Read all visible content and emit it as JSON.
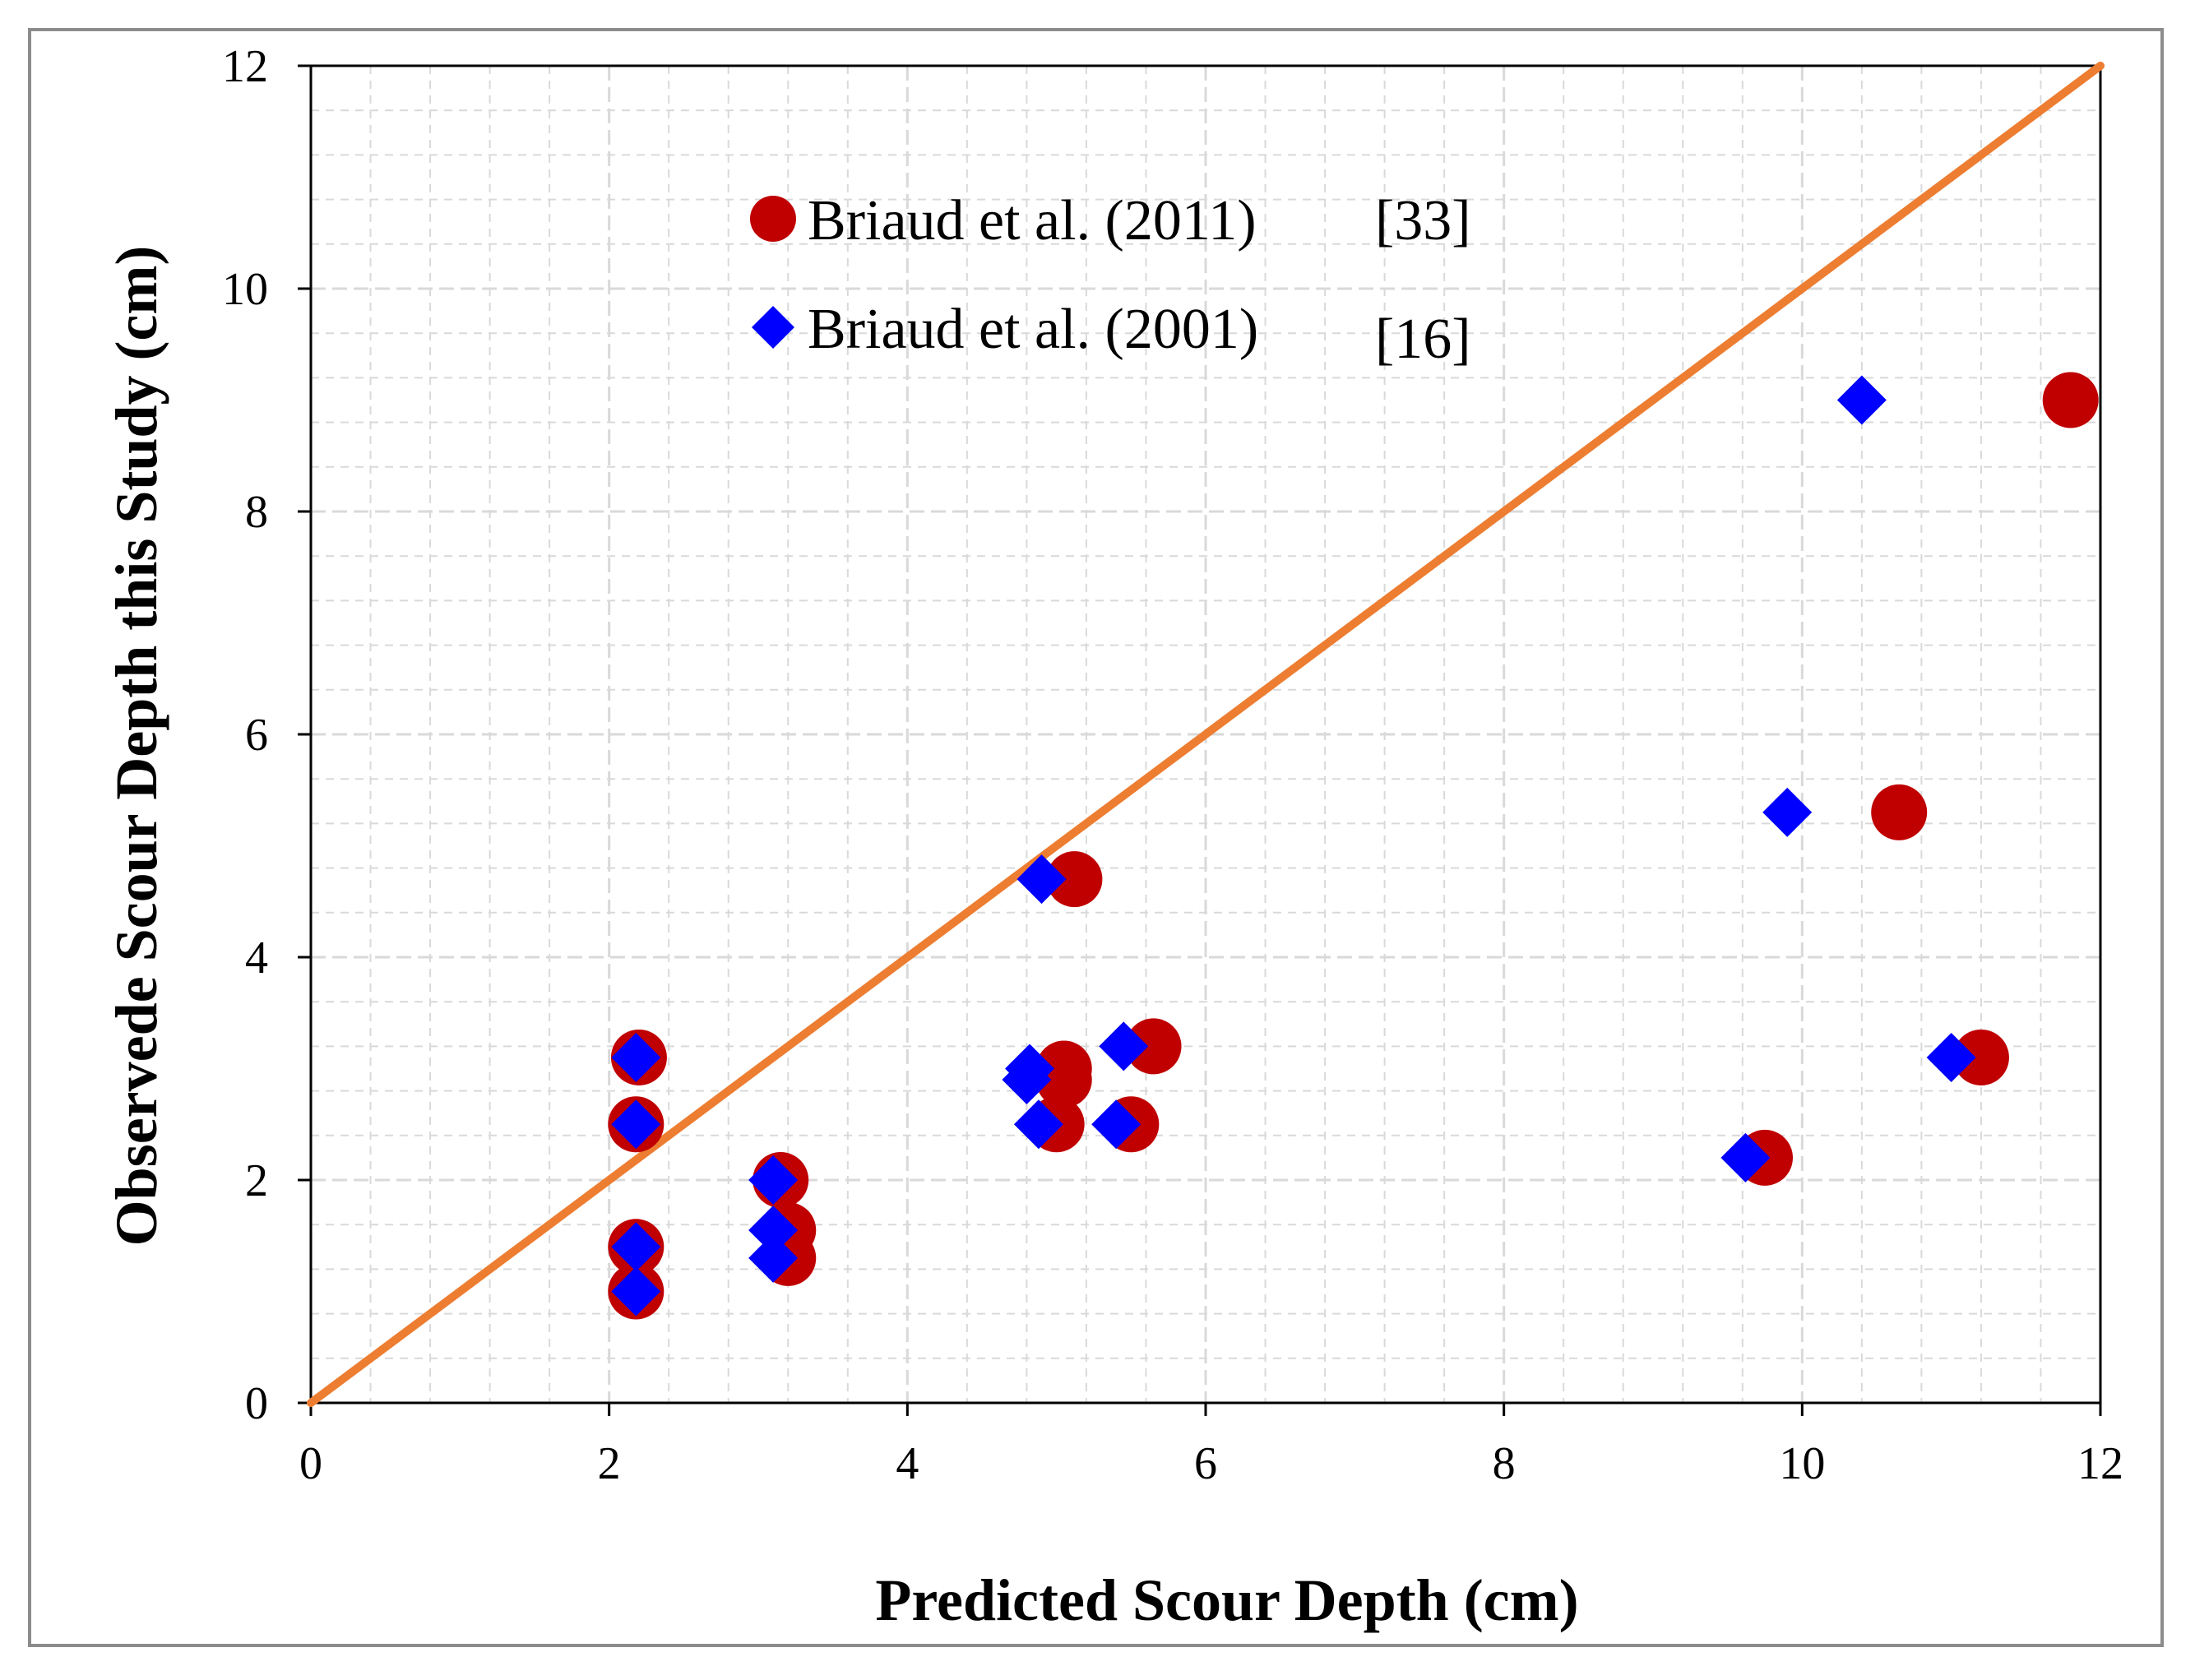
{
  "chart_data": {
    "type": "scatter",
    "title": "",
    "xlabel": "Predicted Scour Depth (cm)",
    "ylabel": "Observede Scour Depth this Study (cm)",
    "xlim": [
      0,
      12
    ],
    "ylim": [
      0,
      12
    ],
    "xticks": [
      "0",
      "2",
      "4",
      "6",
      "8",
      "10",
      "12"
    ],
    "yticks": [
      "0",
      "2",
      "4",
      "6",
      "8",
      "10",
      "12"
    ],
    "grid": true,
    "legend_position": "top-left",
    "reference_line": {
      "name": "1:1 line",
      "x": [
        0,
        12
      ],
      "y": [
        0,
        12
      ],
      "color": "#ED7D31"
    },
    "series": [
      {
        "name": "Briaud et al. (2011)",
        "ref": "[33]",
        "marker": "circle",
        "color": "#C00000",
        "points": [
          [
            2.18,
            1.0
          ],
          [
            2.18,
            1.4
          ],
          [
            2.18,
            2.5
          ],
          [
            2.2,
            3.1
          ],
          [
            3.2,
            1.3
          ],
          [
            3.2,
            1.55
          ],
          [
            3.15,
            2.0
          ],
          [
            5.0,
            2.5
          ],
          [
            5.05,
            2.9
          ],
          [
            5.05,
            3.0
          ],
          [
            5.12,
            4.7
          ],
          [
            5.5,
            2.5
          ],
          [
            5.65,
            3.2
          ],
          [
            9.75,
            2.2
          ],
          [
            10.65,
            5.3
          ],
          [
            11.2,
            3.1
          ],
          [
            11.8,
            9.0
          ]
        ]
      },
      {
        "name": "Briaud et al. (2001)",
        "ref": "[16]",
        "marker": "diamond",
        "color": "#0000FF",
        "points": [
          [
            2.18,
            1.0
          ],
          [
            2.18,
            1.4
          ],
          [
            2.18,
            2.5
          ],
          [
            2.18,
            3.1
          ],
          [
            3.1,
            1.3
          ],
          [
            3.1,
            1.55
          ],
          [
            3.1,
            2.0
          ],
          [
            4.8,
            2.9
          ],
          [
            4.82,
            3.0
          ],
          [
            4.88,
            2.5
          ],
          [
            4.9,
            4.7
          ],
          [
            5.4,
            2.5
          ],
          [
            5.45,
            3.2
          ],
          [
            9.62,
            2.2
          ],
          [
            9.9,
            5.3
          ],
          [
            10.4,
            9.0
          ],
          [
            11.0,
            3.1
          ]
        ]
      }
    ]
  }
}
